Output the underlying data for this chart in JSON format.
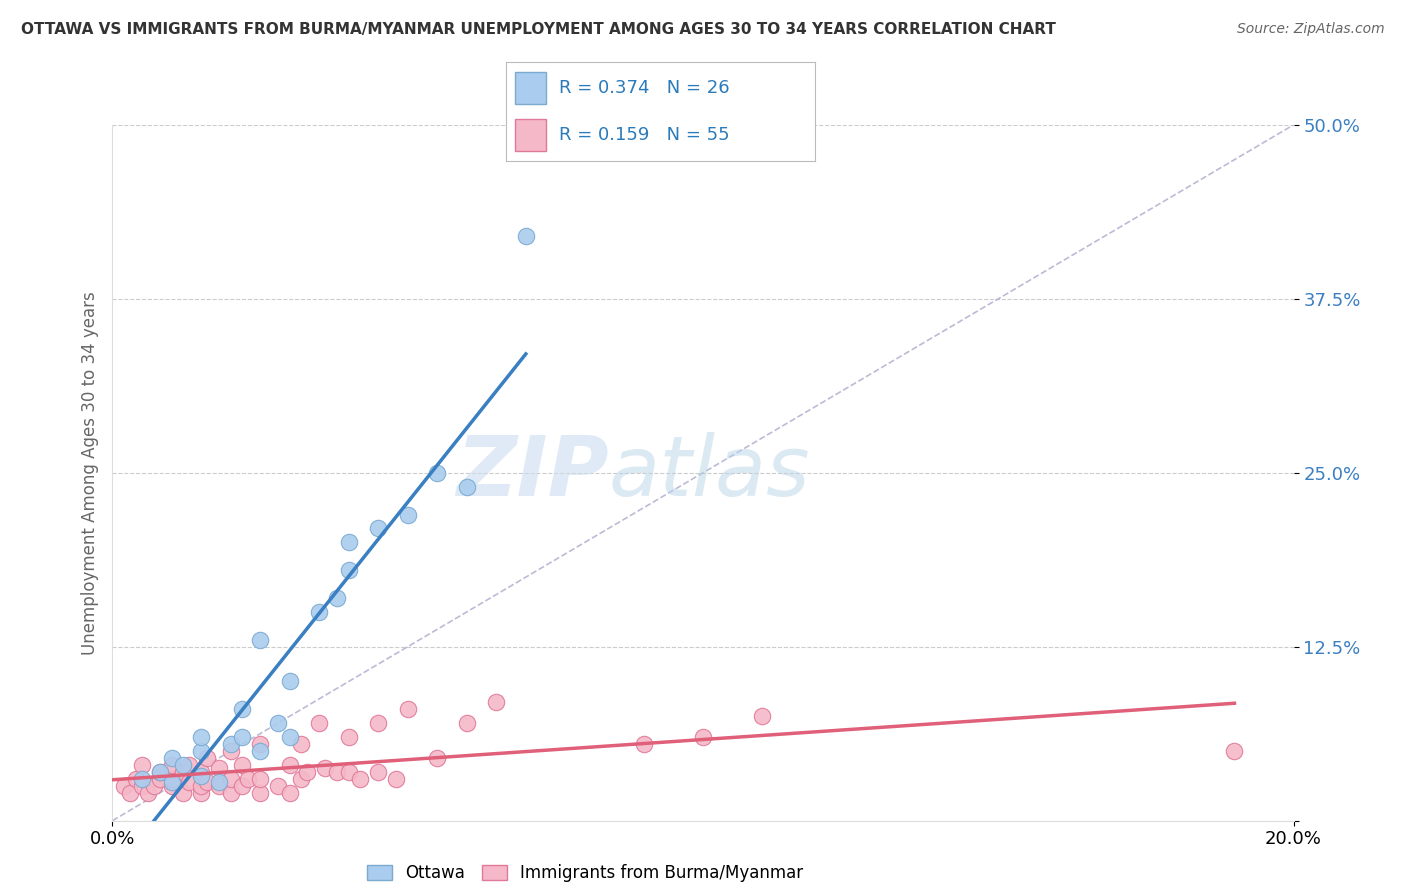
{
  "title": "OTTAWA VS IMMIGRANTS FROM BURMA/MYANMAR UNEMPLOYMENT AMONG AGES 30 TO 34 YEARS CORRELATION CHART",
  "source": "Source: ZipAtlas.com",
  "ylabel": "Unemployment Among Ages 30 to 34 years",
  "xlim": [
    0.0,
    0.2
  ],
  "ylim": [
    0.0,
    0.5
  ],
  "yticks": [
    0.0,
    0.125,
    0.25,
    0.375,
    0.5
  ],
  "ytick_labels": [
    "",
    "12.5%",
    "25.0%",
    "37.5%",
    "50.0%"
  ],
  "xticks": [
    0.0,
    0.2
  ],
  "xtick_labels": [
    "0.0%",
    "20.0%"
  ],
  "background_color": "#ffffff",
  "grid_color": "#cccccc",
  "watermark_zip": "ZIP",
  "watermark_atlas": "atlas",
  "ottawa_color": "#aaccee",
  "ottawa_edge_color": "#7aaad0",
  "myanmar_color": "#f4b8c8",
  "myanmar_edge_color": "#e07898",
  "ottawa_R": 0.374,
  "ottawa_N": 26,
  "myanmar_R": 0.159,
  "myanmar_N": 55,
  "legend_R_color": "#2b7bba",
  "ottawa_line_color": "#3a7fc1",
  "myanmar_line_color": "#e0607a",
  "diag_color": "#aaaacc",
  "ottawa_scatter_x": [
    0.005,
    0.008,
    0.01,
    0.01,
    0.012,
    0.015,
    0.015,
    0.015,
    0.018,
    0.02,
    0.022,
    0.022,
    0.025,
    0.025,
    0.028,
    0.03,
    0.03,
    0.035,
    0.038,
    0.04,
    0.04,
    0.045,
    0.05,
    0.055,
    0.06,
    0.07
  ],
  "ottawa_scatter_y": [
    0.03,
    0.035,
    0.028,
    0.045,
    0.04,
    0.032,
    0.05,
    0.06,
    0.028,
    0.055,
    0.06,
    0.08,
    0.05,
    0.13,
    0.07,
    0.06,
    0.1,
    0.15,
    0.16,
    0.18,
    0.2,
    0.21,
    0.22,
    0.25,
    0.24,
    0.42
  ],
  "myanmar_scatter_x": [
    0.002,
    0.003,
    0.004,
    0.005,
    0.005,
    0.006,
    0.007,
    0.008,
    0.008,
    0.01,
    0.01,
    0.01,
    0.012,
    0.012,
    0.013,
    0.013,
    0.015,
    0.015,
    0.015,
    0.016,
    0.016,
    0.018,
    0.018,
    0.02,
    0.02,
    0.02,
    0.022,
    0.022,
    0.023,
    0.025,
    0.025,
    0.025,
    0.028,
    0.03,
    0.03,
    0.032,
    0.032,
    0.033,
    0.035,
    0.036,
    0.038,
    0.04,
    0.04,
    0.042,
    0.045,
    0.045,
    0.048,
    0.05,
    0.055,
    0.06,
    0.065,
    0.09,
    0.1,
    0.11,
    0.19
  ],
  "myanmar_scatter_y": [
    0.025,
    0.02,
    0.03,
    0.025,
    0.04,
    0.02,
    0.025,
    0.03,
    0.035,
    0.025,
    0.03,
    0.04,
    0.02,
    0.035,
    0.028,
    0.04,
    0.02,
    0.025,
    0.035,
    0.028,
    0.045,
    0.025,
    0.038,
    0.02,
    0.03,
    0.05,
    0.025,
    0.04,
    0.03,
    0.02,
    0.03,
    0.055,
    0.025,
    0.02,
    0.04,
    0.03,
    0.055,
    0.035,
    0.07,
    0.038,
    0.035,
    0.035,
    0.06,
    0.03,
    0.035,
    0.07,
    0.03,
    0.08,
    0.045,
    0.07,
    0.085,
    0.055,
    0.06,
    0.075,
    0.05
  ]
}
